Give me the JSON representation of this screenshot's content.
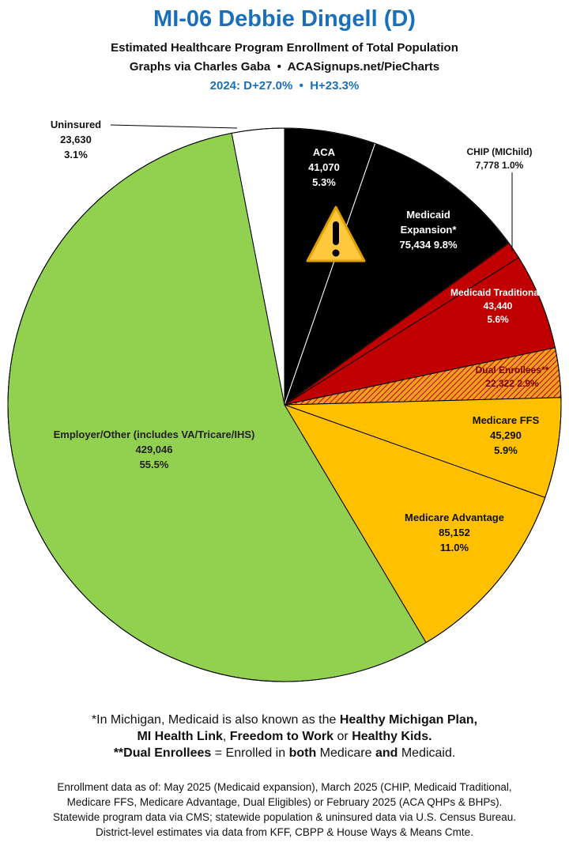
{
  "chart_data": {
    "type": "pie",
    "title": "MI-06 Debbie Dingell (D)",
    "subtitle": "Estimated Healthcare Program Enrollment of Total Population",
    "credit": "Graphs via Charles Gaba  •  ACASignups.net/PieCharts",
    "partisan": "2024: D+27.0%  •  H+23.3%",
    "categories": [
      "ACA",
      "Medicaid Expansion*",
      "CHIP (MIChild)",
      "Medicaid Traditional*",
      "Dual Enrollees**",
      "Medicare FFS",
      "Medicare Advantage",
      "Employer/Other (includes VA/Tricare/IHS)",
      "Uninsured"
    ],
    "values": [
      41070,
      75434,
      7778,
      43440,
      22322,
      45290,
      85152,
      429046,
      23630
    ],
    "value_labels": [
      "41,070",
      "75,434",
      "7,778",
      "43,440",
      "22,322",
      "45,290",
      "85,152",
      "429,046",
      "23,630"
    ],
    "shares": [
      5.3,
      9.8,
      1.0,
      5.6,
      2.9,
      5.9,
      11.0,
      55.5,
      3.1
    ],
    "share_labels": [
      "5.3%",
      "9.8%",
      "1.0%",
      "5.6%",
      "2.9%",
      "5.9%",
      "11.0%",
      "55.5%",
      "3.1%"
    ],
    "colors": [
      "#000000",
      "#000000",
      "#c00000",
      "#c00000",
      "#f0a020",
      "#ffc000",
      "#ffc000",
      "#92d050",
      "#ffffff"
    ],
    "hatched": [
      false,
      false,
      false,
      false,
      true,
      false,
      false,
      false,
      false
    ],
    "note1": [
      "*In Michigan, Medicaid is also known as the ",
      "Healthy Michigan Plan,"
    ],
    "note2": [
      "MI Health Link",
      ", ",
      "Freedom to Work",
      " or ",
      "Healthy Kids."
    ],
    "note3": [
      "**Dual Enrollees",
      " = Enrolled in ",
      "both",
      " Medicare ",
      "and",
      " Medicaid."
    ],
    "sources": [
      "Enrollment data as of: May 2025 (Medicaid expansion), March 2025 (CHIP, Medicaid Traditional,",
      "Medicare FFS, Medicare Advantage, Dual Eligibles) or February 2025 (ACA QHPs & BHPs).",
      "Statewide program data via CMS; statewide population & uninsured data via U.S. Census Bureau.",
      "District-level estimates via data from KFF, CBPP & House Ways & Means Cmte."
    ]
  }
}
